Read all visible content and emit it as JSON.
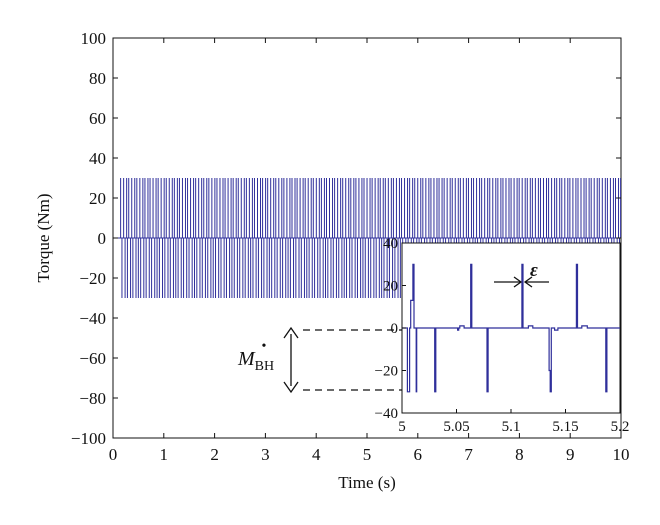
{
  "colors": {
    "series": "#2f2f9b",
    "axis": "#111111",
    "background": "#ffffff",
    "annotation": "#111111"
  },
  "chart_data": [
    {
      "type": "line",
      "title": "",
      "xlabel": "Time (s)",
      "ylabel": "Torque (Nm)",
      "xlim": [
        0,
        10
      ],
      "ylim": [
        -100,
        100
      ],
      "xticks": [
        0,
        1,
        2,
        3,
        4,
        5,
        6,
        7,
        8,
        9,
        10
      ],
      "xtick_labels": [
        "0",
        "1",
        "2",
        "3",
        "4",
        "5",
        "6",
        "7",
        "8",
        "9",
        "10"
      ],
      "yticks": [
        100,
        80,
        60,
        40,
        20,
        0,
        -20,
        -40,
        -60,
        -80,
        -100
      ],
      "ytick_labels": [
        "100",
        "80",
        "60",
        "40",
        "20",
        "0",
        "−20",
        "−40",
        "−60",
        "−80",
        "−100"
      ],
      "grid": false,
      "series": [
        {
          "style": "switching pulse train",
          "upper_pulse_value": 30,
          "lower_pulse_value": -30,
          "baseline_value": 0,
          "start_time": 0.15,
          "end_time": 10,
          "approx_pulses_per_second": 19
        }
      ],
      "annotations": [
        {
          "text": "M",
          "subscript": "BH",
          "accent": "•",
          "y_from": -46,
          "y_to": -76
        }
      ]
    },
    {
      "type": "line",
      "role": "inset zoom",
      "title": "",
      "xlabel": "",
      "ylabel": "",
      "xlim": [
        5,
        5.2
      ],
      "ylim": [
        -40,
        40
      ],
      "xticks": [
        5,
        5.05,
        5.1,
        5.15,
        5.2
      ],
      "xtick_labels": [
        "5",
        "5.05",
        "5.1",
        "5.15",
        "5.2"
      ],
      "yticks": [
        40,
        20,
        0,
        -20,
        -40
      ],
      "ytick_labels": [
        "40",
        "20",
        "0",
        "−20",
        "−40"
      ],
      "grid": false,
      "series": [
        {
          "points": [
            [
              5.0,
              0
            ],
            [
              5.005,
              0
            ],
            [
              5.005,
              -30
            ],
            [
              5.007,
              -30
            ],
            [
              5.007,
              0
            ],
            [
              5.008,
              0
            ],
            [
              5.008,
              13
            ],
            [
              5.01,
              13
            ],
            [
              5.01,
              30
            ],
            [
              5.011,
              30
            ],
            [
              5.011,
              0
            ],
            [
              5.013,
              0
            ],
            [
              5.013,
              -30
            ],
            [
              5.0135,
              -30
            ],
            [
              5.0135,
              0
            ],
            [
              5.03,
              0
            ],
            [
              5.03,
              -30
            ],
            [
              5.031,
              -30
            ],
            [
              5.031,
              0
            ],
            [
              5.051,
              0
            ],
            [
              5.051,
              -1
            ],
            [
              5.052,
              -1
            ],
            [
              5.052,
              0
            ],
            [
              5.053,
              0
            ],
            [
              5.053,
              1
            ],
            [
              5.057,
              1
            ],
            [
              5.057,
              0
            ],
            [
              5.063,
              0
            ],
            [
              5.063,
              30
            ],
            [
              5.064,
              30
            ],
            [
              5.064,
              0
            ],
            [
              5.078,
              0
            ],
            [
              5.078,
              -30
            ],
            [
              5.079,
              -30
            ],
            [
              5.079,
              0
            ],
            [
              5.11,
              0
            ],
            [
              5.11,
              30
            ],
            [
              5.111,
              30
            ],
            [
              5.111,
              0
            ],
            [
              5.116,
              0
            ],
            [
              5.116,
              1
            ],
            [
              5.12,
              1
            ],
            [
              5.12,
              0
            ],
            [
              5.135,
              0
            ],
            [
              5.135,
              -20
            ],
            [
              5.136,
              -20
            ],
            [
              5.136,
              -30
            ],
            [
              5.137,
              -30
            ],
            [
              5.137,
              0
            ],
            [
              5.14,
              0
            ],
            [
              5.14,
              -1
            ],
            [
              5.143,
              -1
            ],
            [
              5.143,
              0
            ],
            [
              5.16,
              0
            ],
            [
              5.16,
              30
            ],
            [
              5.161,
              30
            ],
            [
              5.161,
              0
            ],
            [
              5.165,
              0
            ],
            [
              5.165,
              1
            ],
            [
              5.17,
              1
            ],
            [
              5.17,
              0
            ],
            [
              5.187,
              0
            ],
            [
              5.187,
              -30
            ],
            [
              5.188,
              -30
            ],
            [
              5.188,
              0
            ],
            [
              5.2,
              0
            ]
          ]
        }
      ],
      "annotations": [
        {
          "text": "ε",
          "x_from": 5.1095,
          "x_to": 5.1115,
          "y": 23
        }
      ]
    }
  ]
}
